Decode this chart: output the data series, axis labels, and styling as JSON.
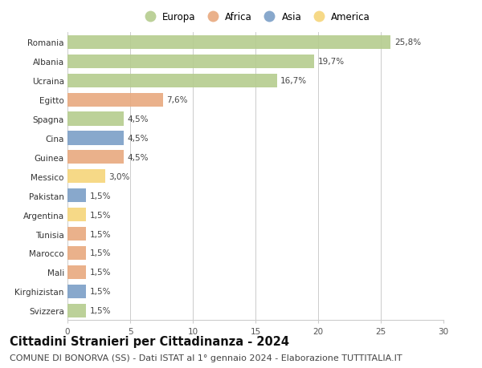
{
  "countries": [
    "Romania",
    "Albania",
    "Ucraina",
    "Egitto",
    "Spagna",
    "Cina",
    "Guinea",
    "Messico",
    "Pakistan",
    "Argentina",
    "Tunisia",
    "Marocco",
    "Mali",
    "Kirghizistan",
    "Svizzera"
  ],
  "values": [
    25.8,
    19.7,
    16.7,
    7.6,
    4.5,
    4.5,
    4.5,
    3.0,
    1.5,
    1.5,
    1.5,
    1.5,
    1.5,
    1.5,
    1.5
  ],
  "labels": [
    "25,8%",
    "19,7%",
    "16,7%",
    "7,6%",
    "4,5%",
    "4,5%",
    "4,5%",
    "3,0%",
    "1,5%",
    "1,5%",
    "1,5%",
    "1,5%",
    "1,5%",
    "1,5%",
    "1,5%"
  ],
  "continents": [
    "Europa",
    "Europa",
    "Europa",
    "Africa",
    "Europa",
    "Asia",
    "Africa",
    "America",
    "Asia",
    "America",
    "Africa",
    "Africa",
    "Africa",
    "Asia",
    "Europa"
  ],
  "continent_colors": {
    "Europa": "#b5cc8e",
    "Africa": "#e8a97e",
    "Asia": "#7b9fc7",
    "America": "#f5d57a"
  },
  "legend_order": [
    "Europa",
    "Africa",
    "Asia",
    "America"
  ],
  "xlim": [
    0,
    30
  ],
  "xticks": [
    0,
    5,
    10,
    15,
    20,
    25,
    30
  ],
  "title": "Cittadini Stranieri per Cittadinanza - 2024",
  "subtitle": "COMUNE DI BONORVA (SS) - Dati ISTAT al 1° gennaio 2024 - Elaborazione TUTTITALIA.IT",
  "background_color": "#ffffff",
  "grid_color": "#cccccc",
  "bar_height": 0.72,
  "title_fontsize": 10.5,
  "subtitle_fontsize": 8,
  "label_fontsize": 7.5,
  "tick_fontsize": 7.5,
  "legend_fontsize": 8.5
}
